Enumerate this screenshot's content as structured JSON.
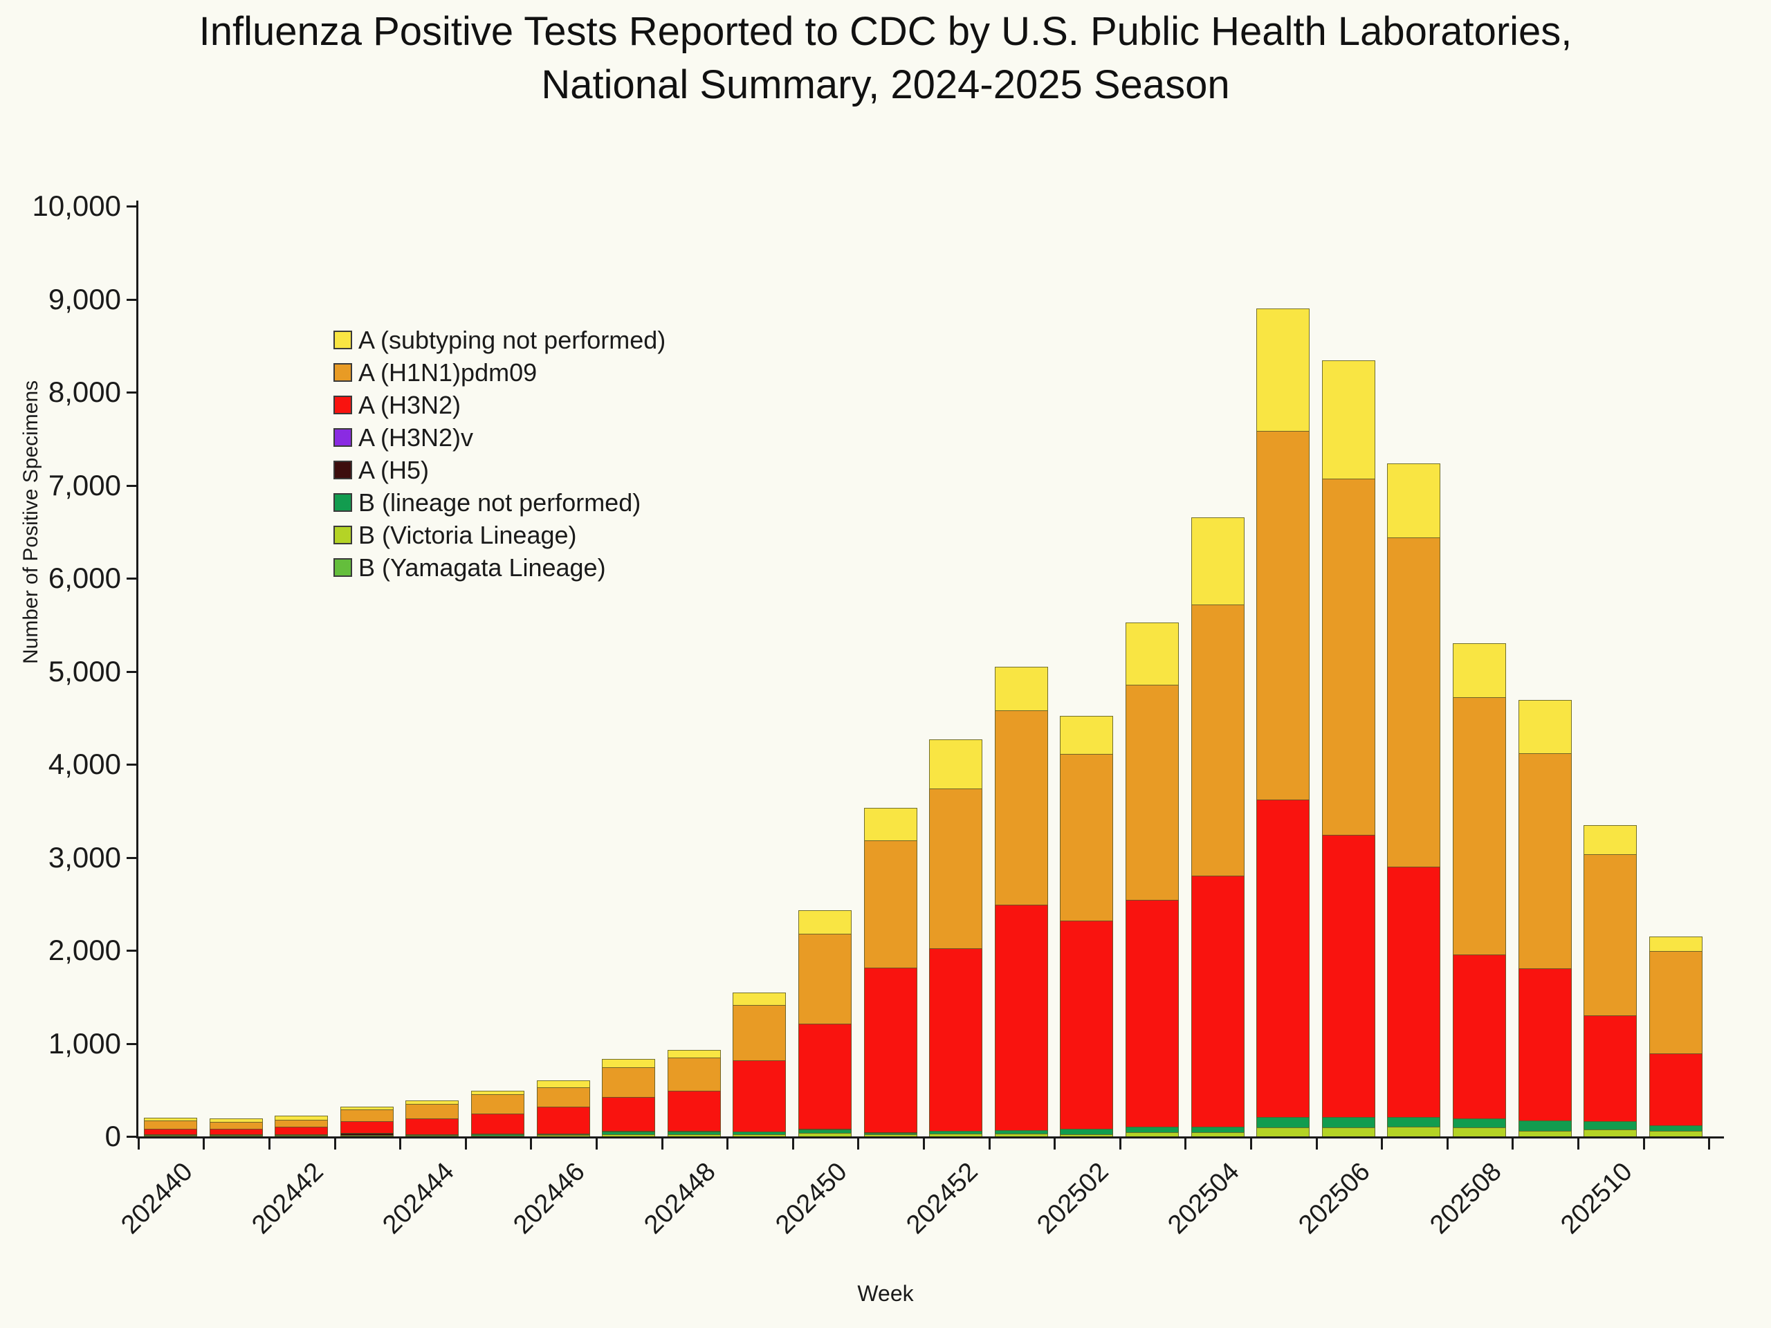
{
  "title": {
    "line1": "Influenza Positive Tests Reported to CDC by U.S. Public Health Laboratories,",
    "line2": "National Summary, 2024-2025 Season"
  },
  "axes": {
    "y_label": "Number of Positive Specimens",
    "x_label": "Week",
    "y_tick_labels": [
      "0",
      "1,000",
      "2,000",
      "3,000",
      "4,000",
      "5,000",
      "6,000",
      "7,000",
      "8,000",
      "9,000",
      "10,000"
    ],
    "x_tick_labels": [
      "202440",
      "202442",
      "202444",
      "202446",
      "202448",
      "202450",
      "202452",
      "202502",
      "202504",
      "202506",
      "202508",
      "202510"
    ]
  },
  "legend": [
    {
      "label": "A (subtyping not performed)",
      "color": "#F9E543"
    },
    {
      "label": "A (H1N1)pdm09",
      "color": "#E89B25"
    },
    {
      "label": "A (H3N2)",
      "color": "#F9130F"
    },
    {
      "label": "A (H3N2)v",
      "color": "#8A2BE2"
    },
    {
      "label": "A (H5)",
      "color": "#3D0D0D"
    },
    {
      "label": "B (lineage not performed)",
      "color": "#129C4F"
    },
    {
      "label": "B (Victoria Lineage)",
      "color": "#B4D326"
    },
    {
      "label": "B (Yamagata Lineage)",
      "color": "#64BE3C"
    }
  ],
  "chart_data": {
    "type": "bar",
    "stacked": true,
    "title": "Influenza Positive Tests Reported to CDC by U.S. Public Health Laboratories, National Summary, 2024-2025 Season",
    "xlabel": "Week",
    "ylabel": "Number of Positive Specimens",
    "ylim": [
      0,
      10000
    ],
    "y_tick_step": 1000,
    "grid": false,
    "legend_position": "upper-left-inside",
    "categories": [
      "202440",
      "202441",
      "202442",
      "202443",
      "202444",
      "202445",
      "202446",
      "202447",
      "202448",
      "202449",
      "202450",
      "202451",
      "202452",
      "202501",
      "202502",
      "202503",
      "202504",
      "202505",
      "202506",
      "202507",
      "202508",
      "202509",
      "202510",
      "202511"
    ],
    "stack_order_note": "series listed bottom-to-top of the stack",
    "series": [
      {
        "name": "B (Yamagata Lineage)",
        "color": "#64BE3C",
        "values": [
          0,
          0,
          0,
          0,
          0,
          0,
          0,
          0,
          0,
          0,
          0,
          0,
          0,
          0,
          0,
          0,
          0,
          0,
          0,
          0,
          0,
          0,
          0,
          0
        ]
      },
      {
        "name": "B (Victoria Lineage)",
        "color": "#B4D326",
        "values": [
          5,
          2,
          5,
          2,
          4,
          10,
          13,
          25,
          25,
          25,
          39,
          25,
          30,
          29,
          26,
          44,
          40,
          95,
          96,
          104,
          99,
          62,
          75,
          59
        ]
      },
      {
        "name": "B (lineage not performed)",
        "color": "#129C4F",
        "values": [
          5,
          3,
          5,
          3,
          4,
          10,
          12,
          25,
          25,
          25,
          35,
          15,
          32,
          38,
          56,
          55,
          59,
          116,
          110,
          107,
          92,
          112,
          89,
          60
        ]
      },
      {
        "name": "A (H5)",
        "color": "#3D0D0D",
        "values": [
          5,
          10,
          10,
          20,
          5,
          8,
          5,
          4,
          5,
          0,
          8,
          5,
          0,
          0,
          0,
          0,
          0,
          0,
          0,
          0,
          0,
          0,
          0,
          0
        ]
      },
      {
        "name": "A (H3N2)v",
        "color": "#8A2BE2",
        "values": [
          0,
          0,
          0,
          0,
          0,
          0,
          0,
          0,
          0,
          0,
          0,
          0,
          0,
          0,
          0,
          0,
          0,
          0,
          0,
          0,
          0,
          0,
          0,
          0
        ]
      },
      {
        "name": "A (H3N2)",
        "color": "#F9130F",
        "values": [
          62,
          59,
          79,
          135,
          180,
          215,
          288,
          368,
          436,
          773,
          1130,
          1770,
          1962,
          2426,
          2239,
          2438,
          2703,
          3408,
          3035,
          2690,
          1769,
          1637,
          1133,
          768
        ]
      },
      {
        "name": "A (H1N1)pdm09",
        "color": "#E89B25",
        "values": [
          93,
          80,
          80,
          130,
          160,
          207,
          208,
          322,
          357,
          595,
          968,
          1370,
          1719,
          2090,
          1793,
          2314,
          2915,
          3965,
          3827,
          3542,
          2764,
          2310,
          1735,
          1103
        ]
      },
      {
        "name": "A (subtyping not performed)",
        "color": "#F9E543",
        "values": [
          30,
          36,
          44,
          30,
          37,
          40,
          74,
          86,
          82,
          132,
          253,
          349,
          528,
          469,
          410,
          670,
          935,
          1315,
          1273,
          794,
          580,
          573,
          313,
          156
        ]
      }
    ],
    "totals": [
      200,
      190,
      223,
      320,
      390,
      490,
      600,
      830,
      930,
      1550,
      2433,
      3534,
      4271,
      5052,
      4524,
      5521,
      6652,
      8899,
      8341,
      7237,
      5304,
      4694,
      3345,
      2146
    ]
  }
}
